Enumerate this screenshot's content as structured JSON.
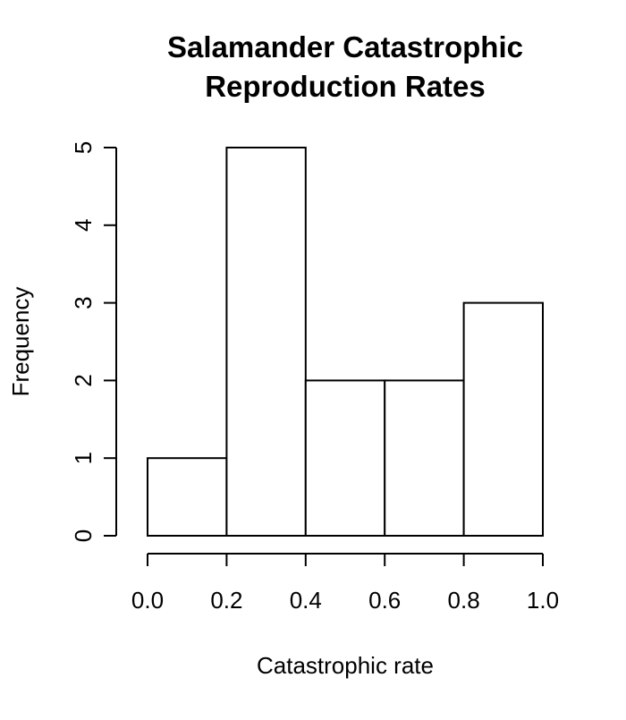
{
  "chart_data": {
    "type": "bar",
    "title_lines": [
      "Salamander Catastrophic",
      "Reproduction Rates"
    ],
    "xlabel": "Catastrophic rate",
    "ylabel": "Frequency",
    "bins": [
      {
        "start": 0.0,
        "end": 0.2,
        "count": 1
      },
      {
        "start": 0.2,
        "end": 0.4,
        "count": 5
      },
      {
        "start": 0.4,
        "end": 0.6,
        "count": 2
      },
      {
        "start": 0.6,
        "end": 0.8,
        "count": 2
      },
      {
        "start": 0.8,
        "end": 1.0,
        "count": 3
      }
    ],
    "xlim": [
      0.0,
      1.0
    ],
    "ylim": [
      0,
      5
    ],
    "x_ticks": [
      "0.0",
      "0.2",
      "0.4",
      "0.6",
      "0.8",
      "1.0"
    ],
    "y_ticks": [
      "0",
      "1",
      "2",
      "3",
      "4",
      "5"
    ],
    "grid": false,
    "bar_fill": "#ffffff",
    "bar_stroke": "#000000"
  }
}
